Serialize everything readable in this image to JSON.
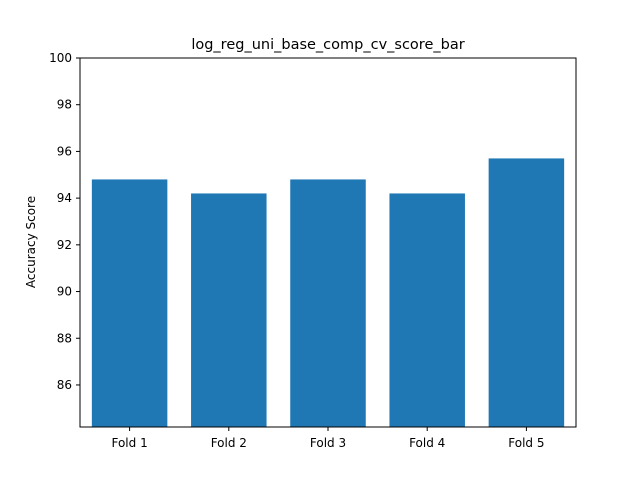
{
  "chart_data": {
    "type": "bar",
    "title": "log_reg_uni_base_comp_cv_score_bar",
    "xlabel": "",
    "ylabel": "Accuracy Score",
    "categories": [
      "Fold 1",
      "Fold 2",
      "Fold 3",
      "Fold 4",
      "Fold 5"
    ],
    "values": [
      94.8,
      94.2,
      94.8,
      94.2,
      95.7
    ],
    "ylim": [
      84.2,
      100
    ],
    "yticks": [
      86,
      88,
      90,
      92,
      94,
      96,
      98,
      100
    ],
    "grid": false,
    "bar_color": "#1f77b4"
  }
}
